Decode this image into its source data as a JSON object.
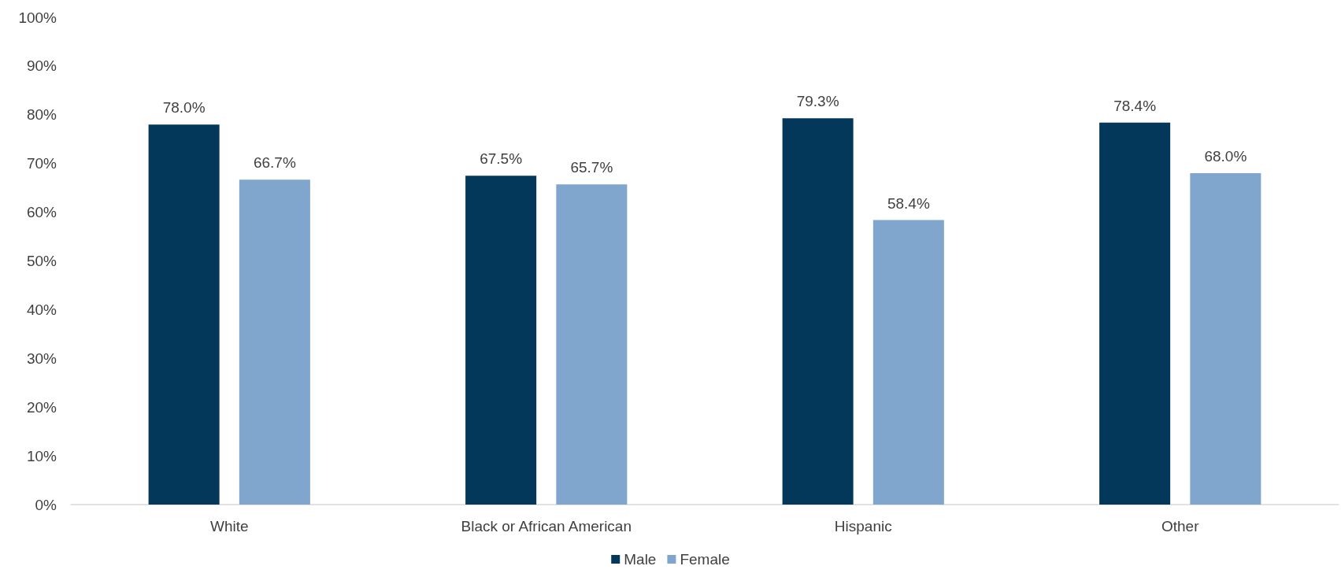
{
  "chart_data": {
    "type": "bar",
    "categories": [
      "White",
      "Black or African American",
      "Hispanic",
      "Other"
    ],
    "series": [
      {
        "name": "Male",
        "color": "#03385a",
        "values": [
          78.0,
          67.5,
          79.3,
          78.4
        ],
        "value_labels": [
          "78.0%",
          "67.5%",
          "79.3%",
          "78.4%"
        ]
      },
      {
        "name": "Female",
        "color": "#80a6cd",
        "values": [
          66.7,
          65.7,
          58.4,
          68.0
        ],
        "value_labels": [
          "66.7%",
          "65.7%",
          "58.4%",
          "68.0%"
        ]
      }
    ],
    "ylim": [
      0,
      100
    ],
    "yticks": [
      {
        "value": 0,
        "label": "0%"
      },
      {
        "value": 10,
        "label": "10%"
      },
      {
        "value": 20,
        "label": "20%"
      },
      {
        "value": 30,
        "label": "30%"
      },
      {
        "value": 40,
        "label": "40%"
      },
      {
        "value": 50,
        "label": "50%"
      },
      {
        "value": 60,
        "label": "60%"
      },
      {
        "value": 70,
        "label": "70%"
      },
      {
        "value": 80,
        "label": "80%"
      },
      {
        "value": 90,
        "label": "90%"
      },
      {
        "value": 100,
        "label": "100%"
      }
    ],
    "grid": false,
    "legend": "bottom"
  }
}
